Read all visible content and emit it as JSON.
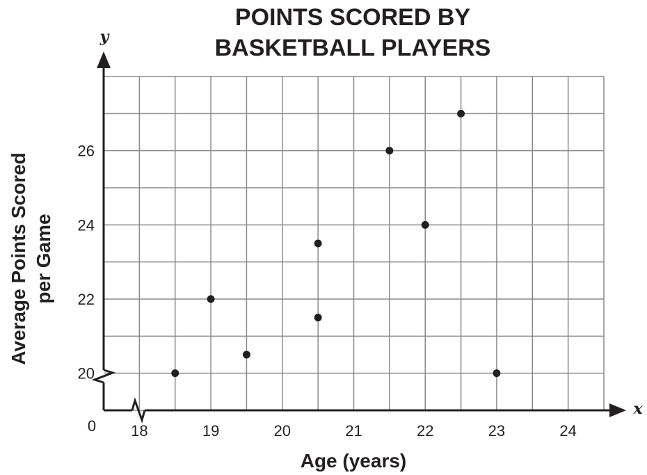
{
  "chart_data": {
    "type": "scatter",
    "title": [
      "POINTS SCORED BY",
      "BASKETBALL PLAYERS"
    ],
    "xlabel": "Age (years)",
    "ylabel": [
      "Average Points Scored",
      "per Game"
    ],
    "x_axis_var": "x",
    "y_axis_var": "y",
    "origin_label": "0",
    "xlim": [
      17.5,
      24.5
    ],
    "ylim": [
      19,
      28
    ],
    "x_ticks": [
      18,
      19,
      20,
      21,
      22,
      23,
      24
    ],
    "y_ticks": [
      20,
      22,
      24,
      26
    ],
    "grid": true,
    "axis_break": true,
    "points": [
      {
        "x": 18.5,
        "y": 20
      },
      {
        "x": 19,
        "y": 22
      },
      {
        "x": 19.5,
        "y": 20.5
      },
      {
        "x": 20.5,
        "y": 23.5
      },
      {
        "x": 20.5,
        "y": 21.5
      },
      {
        "x": 21.5,
        "y": 26
      },
      {
        "x": 22,
        "y": 24
      },
      {
        "x": 22.5,
        "y": 27
      },
      {
        "x": 23,
        "y": 20
      }
    ],
    "colors": {
      "ink": "#231f20",
      "grid": "#8a8a8a"
    }
  }
}
